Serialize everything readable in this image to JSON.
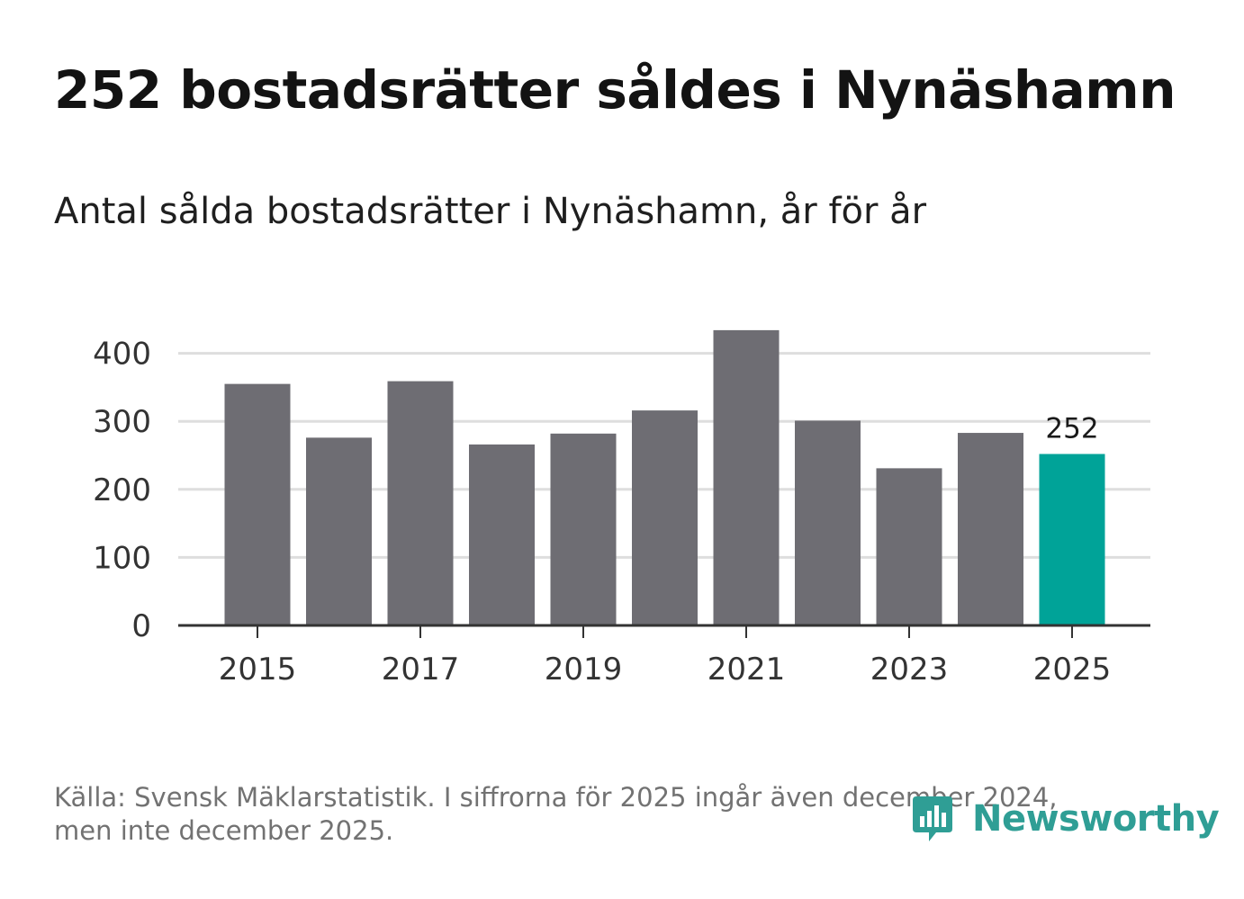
{
  "header": {
    "title": "252 bostadsrätter såldes i Nynäshamn",
    "subtitle": "Antal sålda bostadsrätter i Nynäshamn, år för år"
  },
  "footer": {
    "source_line1": "Källa: Svensk Mäklarstatistik. I siffrorna för 2025 ingår även december 2024,",
    "source_line2": "men inte december 2025."
  },
  "brand": {
    "name": "Newsworthy",
    "color": "#2f9e95"
  },
  "colors": {
    "bar": "#6e6d73",
    "highlight": "#00a398",
    "grid": "#dedede",
    "axis": "#333333"
  },
  "chart_data": {
    "type": "bar",
    "title": "Antal sålda bostadsrätter i Nynäshamn, år för år",
    "xlabel": "",
    "ylabel": "",
    "categories": [
      "2015",
      "2016",
      "2017",
      "2018",
      "2019",
      "2020",
      "2021",
      "2022",
      "2023",
      "2024",
      "2025"
    ],
    "values": [
      355,
      276,
      359,
      266,
      282,
      316,
      434,
      301,
      231,
      283,
      252
    ],
    "highlight_category": "2025",
    "xtick_labels": [
      "2015",
      "2017",
      "2019",
      "2021",
      "2023",
      "2025"
    ],
    "yticks": [
      0,
      100,
      200,
      300,
      400
    ],
    "ylim": [
      0,
      440
    ],
    "grid": true,
    "data_labels": [
      {
        "category": "2025",
        "text": "252"
      }
    ]
  }
}
